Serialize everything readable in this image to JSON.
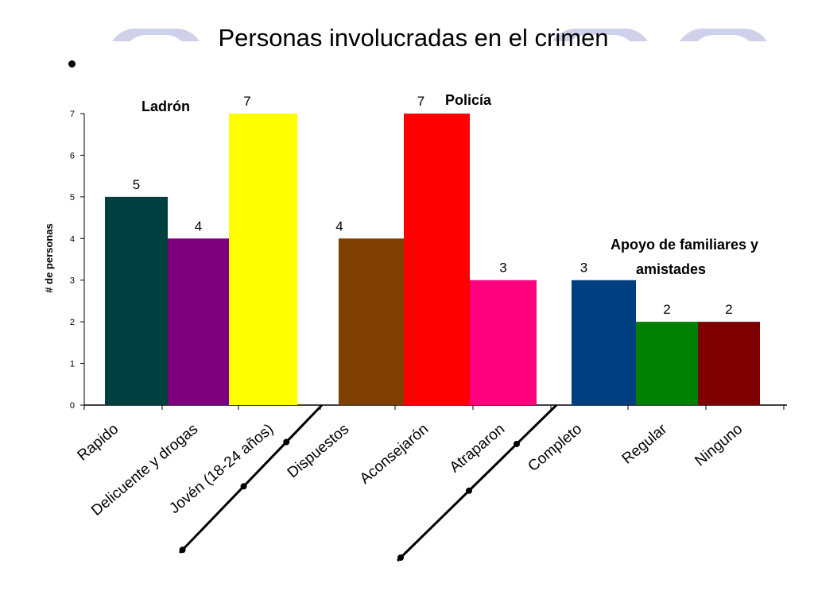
{
  "slide": {
    "title": "Personas involucradas en el crimen"
  },
  "chart_data": {
    "type": "bar",
    "ylabel": "# de personas",
    "xlabel": "",
    "ylim": [
      0,
      7
    ],
    "yticks": [
      "0",
      "1",
      "2",
      "3",
      "4",
      "5",
      "6",
      "7"
    ],
    "grid": false,
    "categories": [
      "Rapido",
      "Delicuente y drogas",
      "Jovén (18-24 años)",
      "Dispuestos",
      "Aconsejarón",
      "Atraparon",
      "Completo",
      "Regular",
      "Ninguno"
    ],
    "values": [
      5,
      4,
      7,
      4,
      7,
      3,
      3,
      2,
      2
    ],
    "colors": [
      "#003f3f",
      "#7f007f",
      "#ffff00",
      "#7f3f00",
      "#ff0000",
      "#ff007f",
      "#003f7f",
      "#007f00",
      "#7f0000"
    ],
    "group_labels": [
      {
        "text": "Ladrón",
        "group": 1
      },
      {
        "text": "Policía",
        "group": 2
      },
      {
        "text": "Apoyo de familiares y",
        "group": 3
      },
      {
        "text": "amistades",
        "group": 3
      }
    ]
  }
}
